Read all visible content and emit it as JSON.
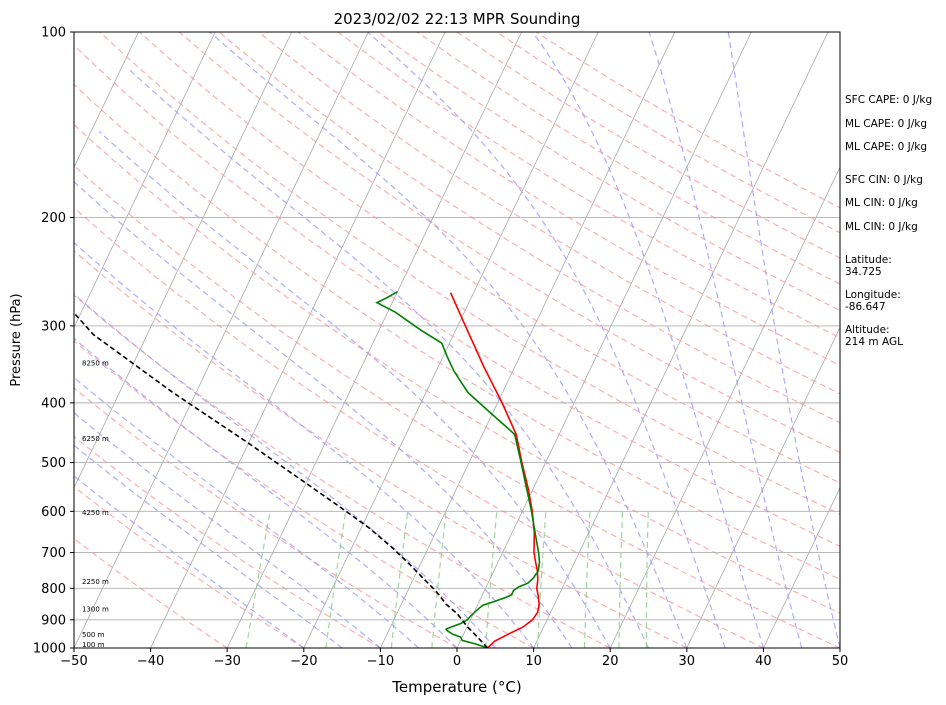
{
  "chart_data": {
    "type": "line",
    "subtype": "skew-T log-P diagram",
    "title": "2023/02/02 22:13 MPR Sounding",
    "xlabel": "Temperature (°C)",
    "ylabel": "Pressure (hPa)",
    "xlim": [
      -50,
      50
    ],
    "ylim": [
      1000,
      100
    ],
    "y_scale": "log",
    "x_ticks": [
      "−50",
      "−40",
      "−30",
      "−20",
      "−10",
      "0",
      "10",
      "20",
      "30",
      "40",
      "50"
    ],
    "y_ticks": [
      "100",
      "200",
      "300",
      "400",
      "500",
      "600",
      "700",
      "800",
      "900",
      "1000"
    ],
    "grid": "horizontal pressure lines",
    "reference_lines": {
      "isotherms_color": "#aaaaaa",
      "dry_adiabats_color": "#ff9999",
      "moist_adiabats_color": "#9999ff",
      "mixing_ratio_color": "#88cc88"
    },
    "series": [
      {
        "role": "temperature",
        "color": "#ff0000",
        "points": [
          [
            4.0,
            1000
          ],
          [
            4.5,
            975
          ],
          [
            5.8,
            950
          ],
          [
            7.3,
            925
          ],
          [
            8.1,
            900
          ],
          [
            8.3,
            875
          ],
          [
            8.0,
            850
          ],
          [
            7.4,
            825
          ],
          [
            6.7,
            800
          ],
          [
            6.3,
            775
          ],
          [
            5.7,
            750
          ],
          [
            4.9,
            725
          ],
          [
            4.1,
            700
          ],
          [
            2.9,
            650
          ],
          [
            1.3,
            600
          ],
          [
            -0.7,
            550
          ],
          [
            -3.1,
            500
          ],
          [
            -5.6,
            450
          ],
          [
            -9.4,
            400
          ],
          [
            -14.0,
            350
          ],
          [
            -19.0,
            300
          ],
          [
            -23.0,
            265
          ]
        ]
      },
      {
        "role": "dewpoint",
        "color": "#008000",
        "points": [
          [
            4.0,
            1000
          ],
          [
            2.2,
            985
          ],
          [
            0.2,
            972
          ],
          [
            -0.2,
            960
          ],
          [
            -1.4,
            950
          ],
          [
            -2.3,
            938
          ],
          [
            -2.6,
            932
          ],
          [
            -2.1,
            925
          ],
          [
            -1.0,
            912
          ],
          [
            -0.4,
            900
          ],
          [
            -0.2,
            887
          ],
          [
            0.2,
            870
          ],
          [
            0.7,
            852
          ],
          [
            2.0,
            840
          ],
          [
            3.2,
            828
          ],
          [
            3.8,
            820
          ],
          [
            3.8,
            806
          ],
          [
            4.3,
            795
          ],
          [
            5.2,
            785
          ],
          [
            5.6,
            770
          ],
          [
            5.8,
            750
          ],
          [
            5.4,
            725
          ],
          [
            4.7,
            700
          ],
          [
            3.0,
            650
          ],
          [
            1.2,
            600
          ],
          [
            -0.9,
            550
          ],
          [
            -3.2,
            500
          ],
          [
            -5.8,
            450
          ],
          [
            -11.0,
            410
          ],
          [
            -14.5,
            385
          ],
          [
            -17.7,
            355
          ],
          [
            -19.6,
            335
          ],
          [
            -21.0,
            320
          ],
          [
            -24.5,
            305
          ],
          [
            -29.0,
            285
          ],
          [
            -32.0,
            275
          ],
          [
            -31.0,
            270
          ],
          [
            -30.0,
            264
          ]
        ]
      },
      {
        "role": "parcel profile",
        "color": "#000000",
        "dashed": true,
        "points": [
          [
            4.0,
            1000
          ],
          [
            2.0,
            960
          ],
          [
            0.1,
            925
          ],
          [
            -2.1,
            880
          ],
          [
            -4.1,
            850
          ],
          [
            -6.2,
            810
          ],
          [
            -8.8,
            770
          ],
          [
            -11.5,
            730
          ],
          [
            -14.5,
            690
          ],
          [
            -18.8,
            640
          ],
          [
            -23.0,
            600
          ],
          [
            -30.0,
            540
          ],
          [
            -40.0,
            465
          ],
          [
            -53.0,
            385
          ],
          [
            -67.0,
            310
          ],
          [
            -74.0,
            268
          ]
        ]
      }
    ],
    "height_labels": [
      "100 m",
      "500 m",
      "1300 m",
      "2250 m",
      "4250 m",
      "6250 m",
      "8250 m"
    ],
    "height_label_pressures": [
      988,
      952,
      866,
      781,
      604,
      458,
      345
    ],
    "annotations": {
      "sfc_cape": "SFC CAPE: 0 J/kg",
      "ml_cape": "ML CAPE: 0 J/kg",
      "ml_cape_2": "ML CAPE: 0 J/kg",
      "sfc_cin": "SFC CIN: 0 J/kg",
      "ml_cin": "ML CIN: 0 J/kg",
      "ml_cin_2": "ML CIN: 0 J/kg",
      "latitude": "Latitude:\n34.725",
      "longitude": "Longitude:\n-86.647",
      "altitude": "Altitude:\n214 m AGL"
    }
  }
}
